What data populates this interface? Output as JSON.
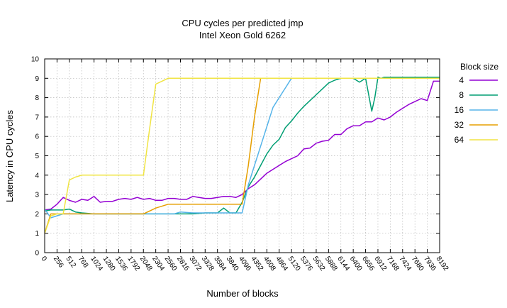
{
  "chart_data": {
    "type": "line",
    "title": "CPU cycles per predicted jmp",
    "subtitle": "Intel Xeon Gold 6262",
    "xlabel": "Number of blocks",
    "ylabel": "Latency in CPU cycles",
    "xlim": [
      0,
      8192
    ],
    "ylim": [
      0,
      10
    ],
    "xticks": [
      0,
      256,
      512,
      768,
      1024,
      1280,
      1536,
      1792,
      2048,
      2304,
      2560,
      2816,
      3072,
      3328,
      3584,
      3840,
      4096,
      4352,
      4608,
      4864,
      5120,
      5376,
      5632,
      5888,
      6144,
      6400,
      6656,
      6912,
      7168,
      7424,
      7680,
      7936,
      8192
    ],
    "yticks": [
      0,
      1,
      2,
      3,
      4,
      5,
      6,
      7,
      8,
      9,
      10
    ],
    "grid": true,
    "legend_title": "Block size",
    "legend_position": "right",
    "series": [
      {
        "name": "4",
        "color": "#9400d3",
        "x": [
          0,
          128,
          256,
          384,
          512,
          640,
          768,
          896,
          1024,
          1152,
          1280,
          1408,
          1536,
          1664,
          1792,
          1920,
          2048,
          2176,
          2304,
          2432,
          2560,
          2688,
          2816,
          2944,
          3072,
          3200,
          3328,
          3456,
          3584,
          3712,
          3840,
          3968,
          4096,
          4224,
          4352,
          4480,
          4608,
          4736,
          4864,
          4992,
          5120,
          5248,
          5376,
          5504,
          5632,
          5760,
          5888,
          6016,
          6144,
          6272,
          6400,
          6528,
          6656,
          6784,
          6912,
          7040,
          7168,
          7296,
          7424,
          7552,
          7680,
          7808,
          7936,
          8064,
          8192
        ],
        "y": [
          2.2,
          2.25,
          2.5,
          2.85,
          2.7,
          2.6,
          2.75,
          2.7,
          2.9,
          2.6,
          2.65,
          2.65,
          2.75,
          2.8,
          2.75,
          2.85,
          2.75,
          2.8,
          2.7,
          2.7,
          2.8,
          2.8,
          2.75,
          2.75,
          2.9,
          2.85,
          2.8,
          2.8,
          2.85,
          2.9,
          2.9,
          2.85,
          3.0,
          3.3,
          3.5,
          3.8,
          4.1,
          4.3,
          4.5,
          4.7,
          4.85,
          5.0,
          5.35,
          5.4,
          5.65,
          5.75,
          5.8,
          6.1,
          6.1,
          6.4,
          6.55,
          6.55,
          6.75,
          6.75,
          6.95,
          6.85,
          7.0,
          7.25,
          7.45,
          7.65,
          7.8,
          7.95,
          7.85,
          8.85,
          8.85
        ]
      },
      {
        "name": "8",
        "color": "#009e73",
        "x": [
          0,
          128,
          256,
          384,
          512,
          640,
          768,
          1024,
          1280,
          1536,
          1792,
          2048,
          2304,
          2560,
          2816,
          3072,
          3328,
          3584,
          3712,
          3840,
          3968,
          4096,
          4224,
          4352,
          4480,
          4608,
          4736,
          4864,
          4992,
          5120,
          5248,
          5376,
          5504,
          5632,
          5760,
          5888,
          6016,
          6144,
          6272,
          6400,
          6528,
          6656,
          6784,
          6848,
          6912,
          6976,
          7040,
          7168,
          7424,
          7680,
          7936,
          8192
        ],
        "y": [
          2.15,
          2.2,
          2.2,
          2.2,
          2.25,
          2.1,
          2.05,
          2.0,
          2.0,
          2.0,
          2.0,
          2.0,
          2.0,
          2.0,
          2.0,
          2.0,
          2.05,
          2.05,
          2.3,
          2.05,
          2.05,
          2.6,
          3.4,
          3.9,
          4.5,
          5.1,
          5.55,
          5.85,
          6.45,
          6.8,
          7.2,
          7.55,
          7.85,
          8.15,
          8.45,
          8.75,
          8.9,
          9.0,
          9.0,
          9.0,
          8.8,
          9.0,
          7.3,
          8.0,
          9.05,
          9.0,
          9.05,
          9.05,
          9.05,
          9.05,
          9.05,
          9.05
        ]
      },
      {
        "name": "16",
        "color": "#56b4e9",
        "x": [
          0,
          128,
          256,
          384,
          512,
          768,
          1024,
          1280,
          1536,
          1792,
          2048,
          2304,
          2560,
          2688,
          2816,
          3072,
          3328,
          3584,
          3840,
          3968,
          4096,
          4224,
          4352,
          4480,
          4608,
          4736,
          4864,
          4992,
          5120,
          5376,
          5632,
          5888,
          6144,
          6400,
          6656,
          6912,
          7168,
          7424,
          7680,
          7936,
          8192
        ],
        "y": [
          2.25,
          1.8,
          1.9,
          2.0,
          2.0,
          2.0,
          2.0,
          2.0,
          2.0,
          2.0,
          2.0,
          2.0,
          2.0,
          2.0,
          2.1,
          2.05,
          2.05,
          2.05,
          2.05,
          2.05,
          2.05,
          3.5,
          4.5,
          5.5,
          6.5,
          7.5,
          8.0,
          8.5,
          9.0,
          9.0,
          9.0,
          9.0,
          9.0,
          9.0,
          9.0,
          9.0,
          9.0,
          9.0,
          9.0,
          9.0,
          9.0
        ]
      },
      {
        "name": "32",
        "color": "#e69f00",
        "x": [
          0,
          128,
          256,
          384,
          512,
          768,
          1024,
          1280,
          1536,
          1792,
          2048,
          2304,
          2560,
          2816,
          3072,
          3328,
          3584,
          3840,
          3968,
          4096,
          4224,
          4352,
          4480,
          4608,
          4864,
          5120,
          5376,
          5632,
          5888,
          6144,
          6400,
          6656,
          6912,
          7168,
          7424,
          7680,
          7936,
          8192
        ],
        "y": [
          1.0,
          2.0,
          2.0,
          2.0,
          2.0,
          2.0,
          2.0,
          2.0,
          2.0,
          2.0,
          2.0,
          2.3,
          2.5,
          2.5,
          2.5,
          2.5,
          2.5,
          2.5,
          2.5,
          2.5,
          4.5,
          7.0,
          9.0,
          9.0,
          9.0,
          9.0,
          9.0,
          9.0,
          9.0,
          9.0,
          9.0,
          9.0,
          9.0,
          9.0,
          9.0,
          9.0,
          9.0,
          9.0
        ]
      },
      {
        "name": "64",
        "color": "#f0e442",
        "x": [
          0,
          128,
          256,
          384,
          512,
          640,
          768,
          1024,
          1280,
          1536,
          1792,
          1920,
          2048,
          2176,
          2304,
          2432,
          2560,
          2816,
          3072,
          3328,
          3584,
          3840,
          4096,
          4352,
          4608,
          4864,
          5120,
          5376,
          5632,
          5888,
          6144,
          6400,
          6656,
          6912,
          7168,
          7424,
          7680,
          7936,
          8192
        ],
        "y": [
          1.0,
          1.9,
          2.0,
          2.0,
          3.75,
          3.9,
          4.0,
          4.0,
          4.0,
          4.0,
          4.0,
          4.0,
          4.0,
          6.4,
          8.7,
          8.85,
          9.0,
          9.0,
          9.0,
          9.0,
          9.0,
          9.0,
          9.0,
          9.0,
          9.0,
          9.0,
          9.0,
          9.0,
          9.0,
          9.0,
          9.0,
          9.0,
          9.0,
          9.0,
          9.0,
          9.0,
          9.0,
          9.0,
          9.0
        ]
      }
    ]
  }
}
